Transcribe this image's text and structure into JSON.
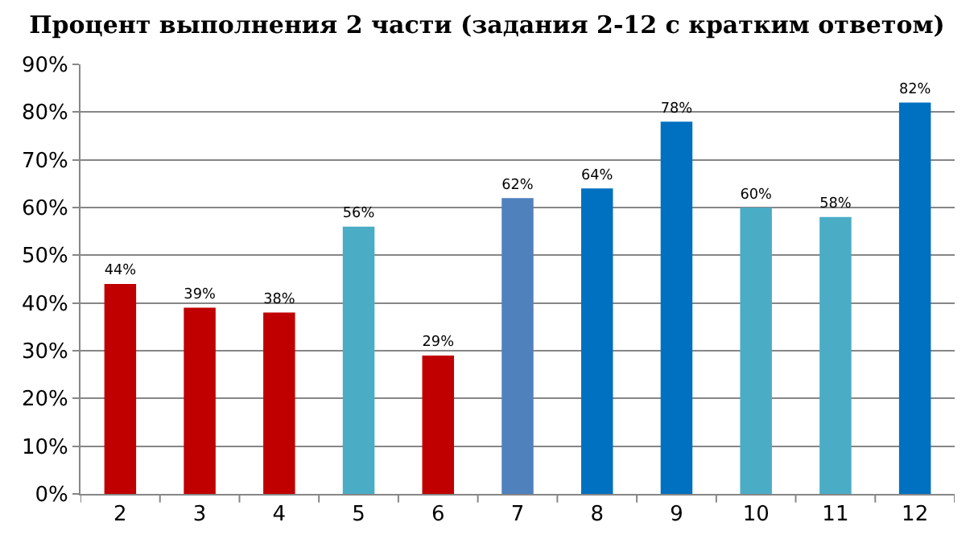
{
  "chart_data": {
    "type": "bar",
    "title": "Процент выполнения 2 части (задания 2-12 с кратким ответом)",
    "categories": [
      "2",
      "3",
      "4",
      "5",
      "6",
      "7",
      "8",
      "9",
      "10",
      "11",
      "12"
    ],
    "values": [
      44,
      39,
      38,
      56,
      29,
      62,
      64,
      78,
      60,
      58,
      82
    ],
    "colors": [
      "#c00000",
      "#c00000",
      "#c00000",
      "#4bacc6",
      "#c00000",
      "#4f81bd",
      "#0070c0",
      "#0070c0",
      "#4bacc6",
      "#4bacc6",
      "#0070c0"
    ],
    "value_labels": [
      "44%",
      "39%",
      "38%",
      "56%",
      "29%",
      "62%",
      "64%",
      "78%",
      "60%",
      "58%",
      "82%"
    ],
    "ylim": [
      0,
      90
    ],
    "yticks": [
      {
        "value": 0,
        "label": "0%"
      },
      {
        "value": 10,
        "label": "10%"
      },
      {
        "value": 20,
        "label": "20%"
      },
      {
        "value": 30,
        "label": "30%"
      },
      {
        "value": 40,
        "label": "40%"
      },
      {
        "value": 50,
        "label": "50%"
      },
      {
        "value": 60,
        "label": "60%"
      },
      {
        "value": 70,
        "label": "70%"
      },
      {
        "value": 80,
        "label": "80%"
      },
      {
        "value": 90,
        "label": "90%"
      }
    ],
    "grid": "y"
  }
}
